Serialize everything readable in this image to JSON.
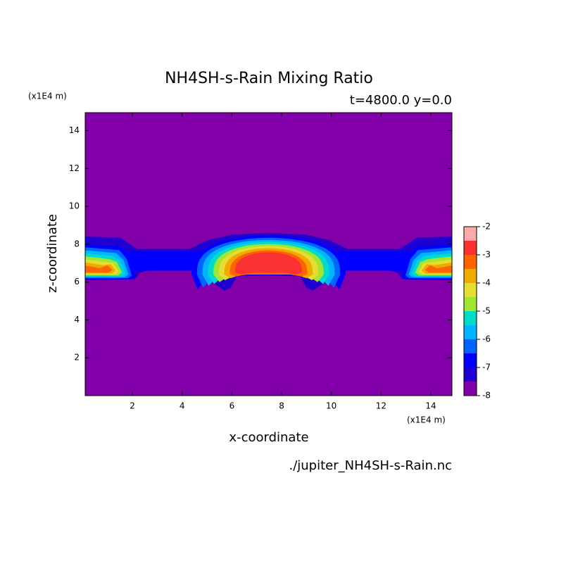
{
  "chart_data": {
    "type": "contour",
    "title": "NH4SH-s-Rain Mixing Ratio",
    "subtitle": "t=4800.0 y=0.0",
    "x_unit": "(x1E4 m)",
    "y_unit": "(x1E4 m)",
    "x_label": "x-coordinate",
    "y_label": "z-coordinate",
    "source": "./jupiter_NH4SH-s-Rain.nc",
    "xlim": [
      0.1,
      14.85
    ],
    "xticks": [
      2,
      4,
      6,
      8,
      10,
      12,
      14
    ],
    "ylim": [
      0,
      14.95
    ],
    "yticks": [
      2,
      4,
      6,
      8,
      10,
      12,
      14
    ],
    "levels": [
      -8,
      -7.5,
      -7,
      -6.5,
      -6,
      -5.5,
      -5,
      -4.5,
      -4,
      -3.5,
      -3,
      -2.5,
      -2
    ],
    "colors": [
      "#8200aa",
      "#1e00d2",
      "#0000ff",
      "#0064ff",
      "#00b4ff",
      "#00dcc8",
      "#a0e632",
      "#e6dc32",
      "#f0aa00",
      "#ff6400",
      "#fa3232",
      "#ffaaaa"
    ],
    "cbticks": [
      -8,
      -7,
      -6,
      -5,
      -4,
      -3,
      -2
    ]
  }
}
